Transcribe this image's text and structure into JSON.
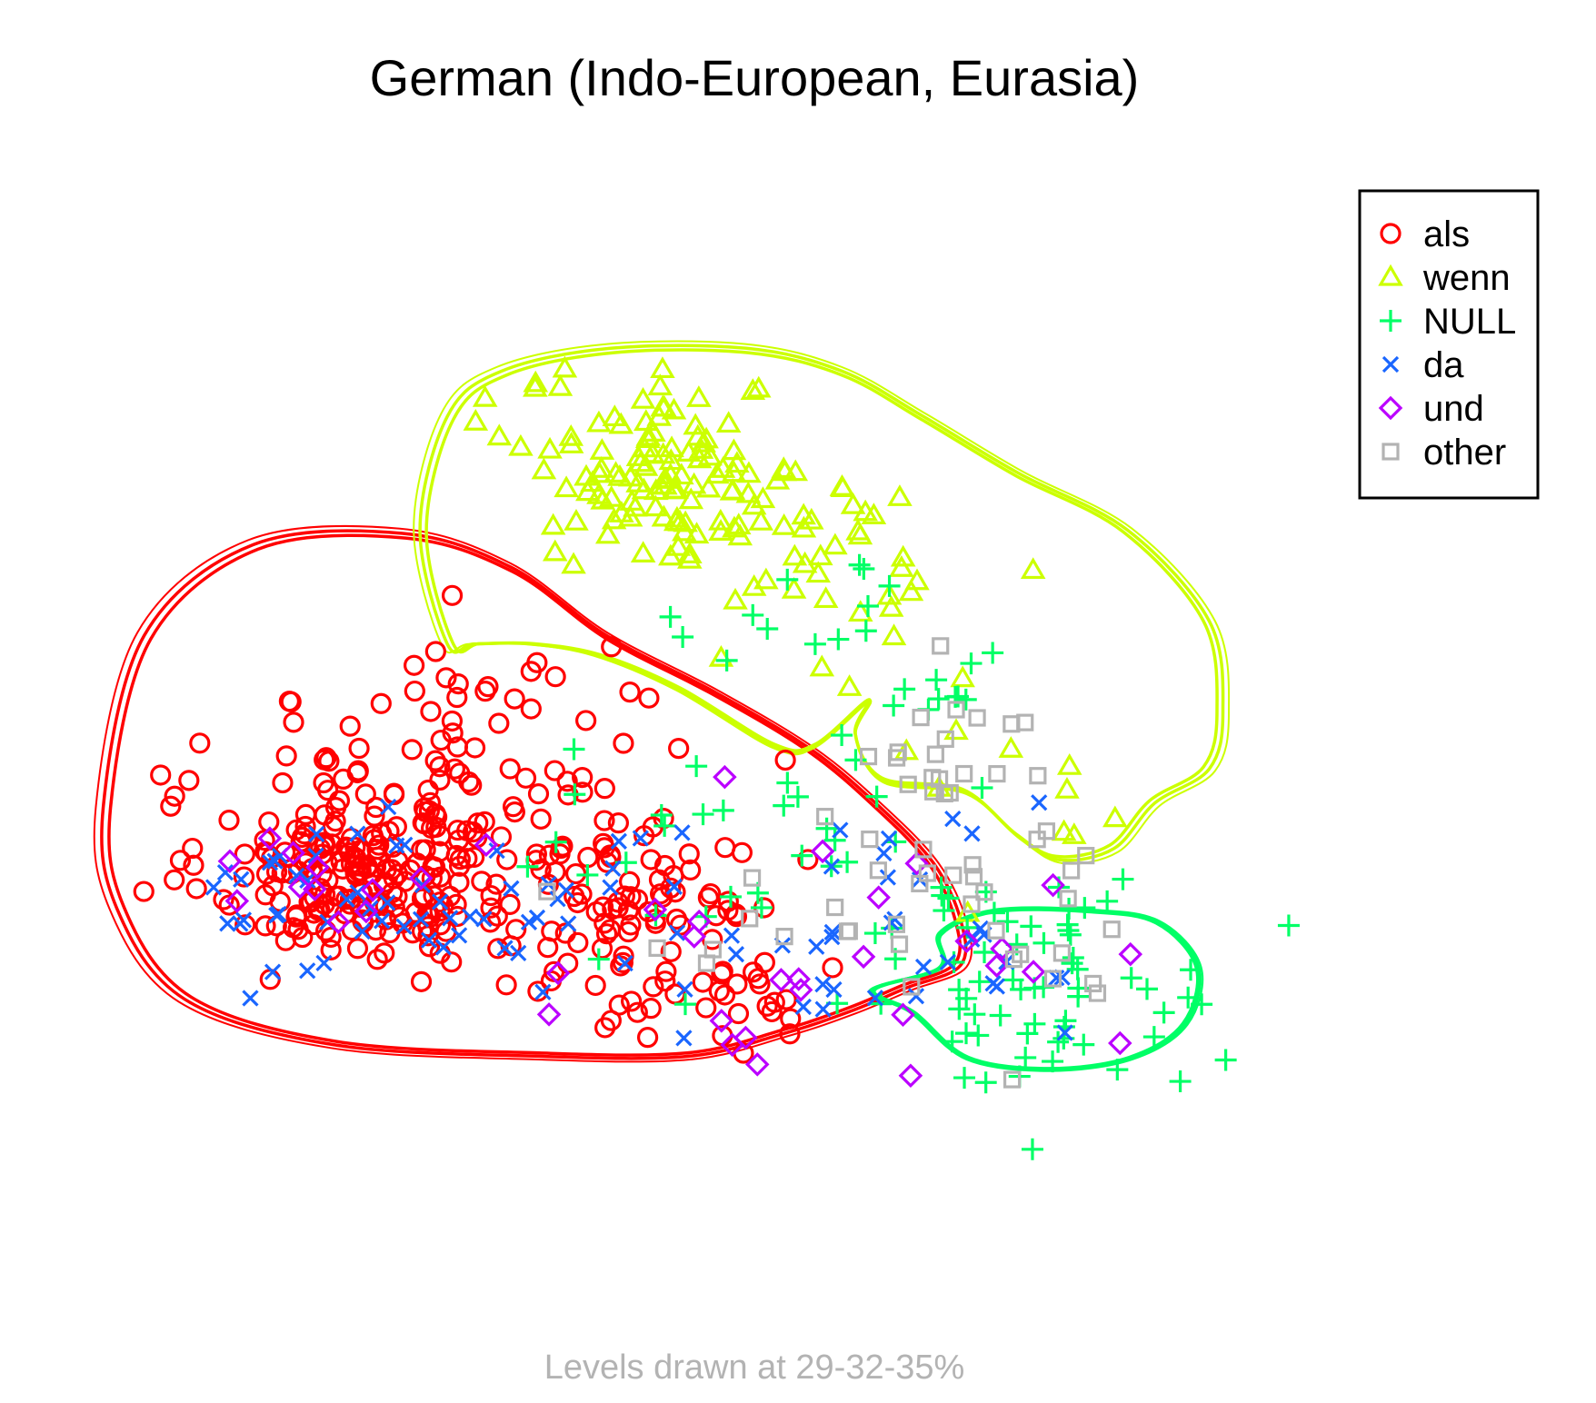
{
  "chart_data": {
    "type": "scatter",
    "title": "German (Indo-European, Eurasia)",
    "caption": "Levels drawn at 29-32-35%",
    "legend_position": "top-right",
    "axes_visible": false,
    "grid": false,
    "xlim": [
      0,
      1
    ],
    "ylim": [
      0,
      1
    ],
    "series": [
      {
        "name": "als",
        "marker": "circle",
        "color": "#ff0000",
        "clusters": [
          {
            "cx": 0.22,
            "cy": 0.36,
            "sx": 0.055,
            "sy": 0.035,
            "n": 180
          },
          {
            "cx": 0.3,
            "cy": 0.44,
            "sx": 0.09,
            "sy": 0.06,
            "n": 110
          },
          {
            "cx": 0.4,
            "cy": 0.33,
            "sx": 0.07,
            "sy": 0.04,
            "n": 70
          },
          {
            "cx": 0.47,
            "cy": 0.27,
            "sx": 0.05,
            "sy": 0.03,
            "n": 40
          }
        ],
        "contour": [
          [
            0.03,
            0.42
          ],
          [
            0.04,
            0.33
          ],
          [
            0.09,
            0.25
          ],
          [
            0.2,
            0.21
          ],
          [
            0.35,
            0.2
          ],
          [
            0.46,
            0.2
          ],
          [
            0.53,
            0.22
          ],
          [
            0.58,
            0.24
          ],
          [
            0.62,
            0.26
          ],
          [
            0.66,
            0.28
          ],
          [
            0.66,
            0.32
          ],
          [
            0.64,
            0.37
          ],
          [
            0.6,
            0.42
          ],
          [
            0.55,
            0.47
          ],
          [
            0.48,
            0.52
          ],
          [
            0.4,
            0.57
          ],
          [
            0.33,
            0.63
          ],
          [
            0.25,
            0.66
          ],
          [
            0.14,
            0.65
          ],
          [
            0.06,
            0.57
          ]
        ]
      },
      {
        "name": "wenn",
        "marker": "triangle",
        "color": "#ccff00",
        "clusters": [
          {
            "cx": 0.44,
            "cy": 0.71,
            "sx": 0.05,
            "sy": 0.04,
            "n": 110
          },
          {
            "cx": 0.55,
            "cy": 0.63,
            "sx": 0.06,
            "sy": 0.05,
            "n": 40
          },
          {
            "cx": 0.68,
            "cy": 0.45,
            "sx": 0.08,
            "sy": 0.06,
            "n": 12
          }
        ],
        "contour": [
          [
            0.28,
            0.56
          ],
          [
            0.26,
            0.66
          ],
          [
            0.28,
            0.76
          ],
          [
            0.32,
            0.8
          ],
          [
            0.4,
            0.82
          ],
          [
            0.5,
            0.82
          ],
          [
            0.57,
            0.8
          ],
          [
            0.63,
            0.76
          ],
          [
            0.7,
            0.71
          ],
          [
            0.78,
            0.66
          ],
          [
            0.84,
            0.58
          ],
          [
            0.85,
            0.5
          ],
          [
            0.84,
            0.45
          ],
          [
            0.8,
            0.42
          ],
          [
            0.77,
            0.38
          ],
          [
            0.73,
            0.37
          ],
          [
            0.7,
            0.39
          ],
          [
            0.66,
            0.43
          ],
          [
            0.6,
            0.44
          ],
          [
            0.58,
            0.48
          ],
          [
            0.59,
            0.51
          ],
          [
            0.55,
            0.47
          ],
          [
            0.52,
            0.47
          ],
          [
            0.45,
            0.52
          ],
          [
            0.39,
            0.55
          ],
          [
            0.34,
            0.56
          ],
          [
            0.3,
            0.56
          ]
        ]
      },
      {
        "name": "NULL",
        "marker": "plus",
        "color": "#00ff66",
        "clusters": [
          {
            "cx": 0.72,
            "cy": 0.27,
            "sx": 0.06,
            "sy": 0.045,
            "n": 60
          },
          {
            "cx": 0.52,
            "cy": 0.36,
            "sx": 0.1,
            "sy": 0.06,
            "n": 40
          },
          {
            "cx": 0.54,
            "cy": 0.6,
            "sx": 0.06,
            "sy": 0.04,
            "n": 14
          },
          {
            "cx": 0.64,
            "cy": 0.52,
            "sx": 0.02,
            "sy": 0.015,
            "n": 8
          }
        ],
        "contour": [
          [
            0.59,
            0.26
          ],
          [
            0.62,
            0.24
          ],
          [
            0.66,
            0.2
          ],
          [
            0.72,
            0.19
          ],
          [
            0.78,
            0.2
          ],
          [
            0.82,
            0.23
          ],
          [
            0.83,
            0.28
          ],
          [
            0.8,
            0.32
          ],
          [
            0.75,
            0.33
          ],
          [
            0.68,
            0.33
          ],
          [
            0.64,
            0.31
          ],
          [
            0.64,
            0.28
          ]
        ]
      },
      {
        "name": "da",
        "marker": "cross",
        "color": "#1a66ff",
        "clusters": [
          {
            "cx": 0.25,
            "cy": 0.34,
            "sx": 0.07,
            "sy": 0.035,
            "n": 50
          },
          {
            "cx": 0.5,
            "cy": 0.31,
            "sx": 0.08,
            "sy": 0.05,
            "n": 25
          },
          {
            "cx": 0.66,
            "cy": 0.32,
            "sx": 0.06,
            "sy": 0.05,
            "n": 20
          }
        ],
        "contour": null
      },
      {
        "name": "und",
        "marker": "diamond",
        "color": "#bb00ff",
        "clusters": [
          {
            "cx": 0.2,
            "cy": 0.36,
            "sx": 0.05,
            "sy": 0.025,
            "n": 12
          },
          {
            "cx": 0.5,
            "cy": 0.29,
            "sx": 0.1,
            "sy": 0.06,
            "n": 18
          },
          {
            "cx": 0.7,
            "cy": 0.3,
            "sx": 0.06,
            "sy": 0.05,
            "n": 8
          }
        ],
        "contour": null
      },
      {
        "name": "other",
        "marker": "square",
        "color": "#b3b3b3",
        "clusters": [
          {
            "cx": 0.65,
            "cy": 0.44,
            "sx": 0.04,
            "sy": 0.05,
            "n": 30
          },
          {
            "cx": 0.7,
            "cy": 0.3,
            "sx": 0.07,
            "sy": 0.05,
            "n": 18
          },
          {
            "cx": 0.48,
            "cy": 0.3,
            "sx": 0.06,
            "sy": 0.04,
            "n": 10
          }
        ],
        "contour": null
      }
    ]
  }
}
